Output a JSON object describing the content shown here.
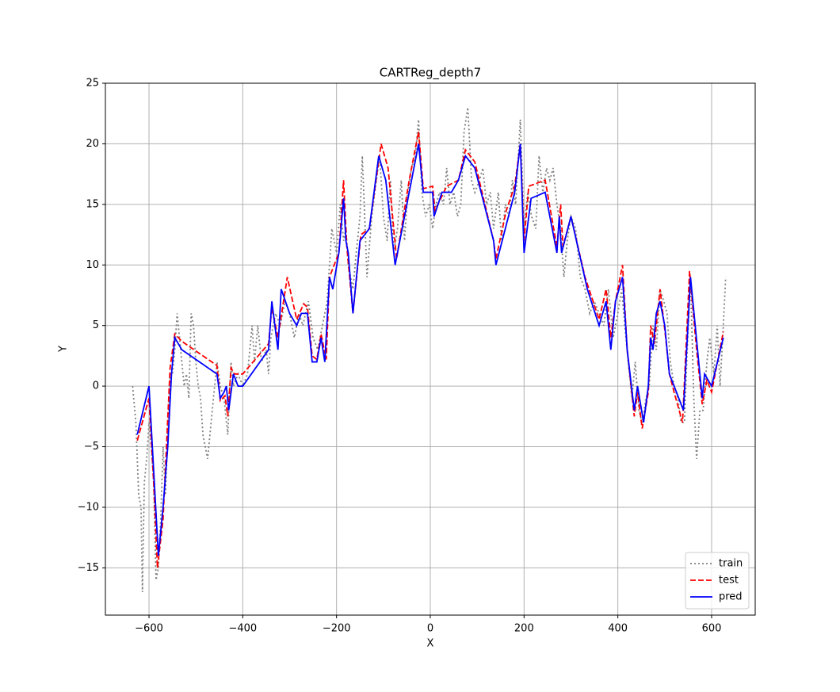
{
  "chart_data": {
    "type": "line",
    "title": "CARTReg_depth7",
    "x_label": "X",
    "y_label": "Y",
    "xlim": [
      -693,
      693
    ],
    "ylim": [
      -18.9,
      25
    ],
    "xticks": [
      {
        "value": -600,
        "label": "−600"
      },
      {
        "value": -400,
        "label": "−400"
      },
      {
        "value": -200,
        "label": "−200"
      },
      0,
      200,
      400,
      600
    ],
    "yticks": [
      {
        "value": -15,
        "label": "−15"
      },
      {
        "value": -10,
        "label": "−10"
      },
      {
        "value": -5,
        "label": "−5"
      },
      0,
      5,
      10,
      15,
      20,
      25
    ],
    "grid": true,
    "legend": "lower right",
    "series": [
      {
        "name": "train",
        "color": "#808080",
        "style": "dotted",
        "x": [
          -635,
          -628,
          -622,
          -617,
          -614,
          -610,
          -605,
          -600,
          -595,
          -590,
          -585,
          -580,
          -575,
          -570,
          -565,
          -560,
          -555,
          -550,
          -545,
          -540,
          -535,
          -530,
          -525,
          -520,
          -515,
          -510,
          -505,
          -500,
          -495,
          -490,
          -485,
          -480,
          -475,
          -470,
          -465,
          -455,
          -448,
          -440,
          -432,
          -425,
          -420,
          -410,
          -400,
          -390,
          -380,
          -375,
          -368,
          -360,
          -350,
          -345,
          -340,
          -330,
          -320,
          -310,
          -300,
          -290,
          -280,
          -272,
          -260,
          -250,
          -240,
          -230,
          -220,
          -210,
          -200,
          -192,
          -185,
          -180,
          -175,
          -165,
          -158,
          -150,
          -145,
          -140,
          -135,
          -125,
          -115,
          -108,
          -100,
          -92,
          -85,
          -78,
          -70,
          -62,
          -55,
          -48,
          -40,
          -32,
          -25,
          -18,
          -10,
          -2,
          5,
          12,
          20,
          28,
          35,
          42,
          50,
          58,
          65,
          72,
          80,
          88,
          95,
          105,
          112,
          120,
          128,
          135,
          145,
          152,
          160,
          168,
          175,
          182,
          192,
          200,
          208,
          216,
          225,
          232,
          240,
          248,
          255,
          262,
          270,
          278,
          285,
          292,
          300,
          310,
          320,
          330,
          340,
          350,
          360,
          370,
          380,
          390,
          400,
          408,
          415,
          422,
          430,
          437,
          445,
          452,
          460,
          467,
          475,
          482,
          490,
          498,
          505,
          512,
          520,
          528,
          535,
          542,
          548,
          555,
          562,
          568,
          575,
          582,
          590,
          596,
          605,
          612,
          618,
          625,
          630
        ],
        "values": [
          0,
          -3,
          -9,
          -10,
          -17,
          -8,
          -6,
          -3,
          -5,
          -8,
          -16,
          -15,
          -11,
          -5,
          -9,
          -4,
          1,
          1,
          3,
          6,
          4,
          2,
          0,
          1,
          -1,
          6,
          5,
          2,
          0,
          -1,
          -4,
          -5,
          -6,
          -4,
          -2,
          2,
          0,
          -1,
          -4,
          2,
          0,
          1,
          0,
          1,
          5,
          2,
          5,
          2,
          3,
          1,
          4,
          6,
          5,
          7,
          6,
          4,
          6,
          5,
          7,
          4,
          3,
          5,
          7,
          13,
          11,
          15,
          12,
          13,
          10,
          8,
          11,
          14,
          19,
          14,
          9,
          14,
          17,
          19,
          14,
          12,
          17,
          11,
          13,
          17,
          12,
          16,
          18,
          19,
          22,
          16,
          14,
          15,
          13,
          15,
          16,
          15,
          18,
          15,
          16,
          14,
          15,
          21,
          23,
          17,
          16,
          17,
          18,
          15,
          16,
          13,
          16,
          12,
          15,
          14,
          17,
          15,
          22,
          13,
          16,
          14,
          13,
          19,
          16,
          18,
          17,
          18,
          15,
          13,
          9,
          12,
          14,
          13,
          9,
          8,
          6,
          7,
          6,
          5,
          8,
          4,
          6,
          8,
          5,
          2,
          -1,
          2,
          -2,
          -3,
          -1,
          0,
          5,
          3,
          8,
          7,
          6,
          2,
          0,
          -1,
          -3,
          -3,
          3,
          9,
          -1,
          -6,
          -2,
          -2,
          2,
          4,
          1,
          5,
          0,
          5,
          9
        ]
      },
      {
        "name": "test",
        "color": "#ff0000",
        "style": "dashed",
        "x": [
          -625,
          -600,
          -590,
          -582,
          -570,
          -555,
          -545,
          -530,
          -455,
          -448,
          -438,
          -432,
          -425,
          -418,
          -400,
          -345,
          -338,
          -325,
          -305,
          -285,
          -270,
          -262,
          -252,
          -242,
          -233,
          -222,
          -215,
          -195,
          -185,
          -178,
          -165,
          -148,
          -130,
          -105,
          -90,
          -72,
          -45,
          -25,
          -15,
          5,
          10,
          35,
          60,
          75,
          95,
          135,
          140,
          162,
          180,
          192,
          200,
          210,
          245,
          270,
          278,
          283,
          300,
          330,
          360,
          375,
          385,
          395,
          410,
          420,
          435,
          442,
          452,
          465,
          470,
          478,
          490,
          502,
          510,
          520,
          538,
          553,
          568,
          580,
          590,
          600,
          625
        ],
        "values": [
          -4.5,
          -1,
          -8,
          -15,
          -11,
          1.5,
          4.3,
          3.7,
          1.7,
          -1.2,
          -0.8,
          -2.5,
          1.5,
          1,
          1,
          3.5,
          6.5,
          4,
          9,
          5.5,
          6.8,
          6.5,
          2.5,
          2.2,
          4.3,
          2.2,
          9,
          11,
          17,
          11.5,
          6,
          12.5,
          13,
          20,
          18,
          10.5,
          17,
          21,
          16.3,
          16.5,
          14.5,
          16.5,
          17,
          19.5,
          18.5,
          12,
          10.5,
          14.5,
          16.5,
          20,
          12,
          16.5,
          17,
          11.5,
          15,
          11.5,
          14,
          9,
          5.5,
          8,
          4,
          7,
          10,
          3,
          -2.5,
          -0.5,
          -3.5,
          -0.5,
          5,
          3.5,
          8,
          4,
          1,
          -0.5,
          -3,
          9.5,
          3,
          -1.5,
          0.5,
          -0.5,
          4.5
        ]
      },
      {
        "name": "pred",
        "color": "#0000ff",
        "style": "solid",
        "x": [
          -625,
          -600,
          -590,
          -580,
          -570,
          -560,
          -552,
          -545,
          -530,
          -455,
          -448,
          -440,
          -435,
          -430,
          -420,
          -410,
          -400,
          -345,
          -338,
          -325,
          -318,
          -300,
          -285,
          -275,
          -262,
          -252,
          -242,
          -233,
          -225,
          -215,
          -208,
          -195,
          -185,
          -180,
          -175,
          -165,
          -150,
          -130,
          -110,
          -95,
          -75,
          -50,
          -25,
          -15,
          5,
          8,
          25,
          45,
          60,
          75,
          95,
          135,
          140,
          160,
          180,
          192,
          200,
          215,
          245,
          270,
          275,
          280,
          300,
          335,
          360,
          375,
          385,
          395,
          410,
          420,
          435,
          442,
          455,
          465,
          470,
          475,
          482,
          490,
          500,
          510,
          520,
          540,
          555,
          570,
          580,
          585,
          600,
          625
        ],
        "values": [
          -4,
          0,
          -7,
          -14,
          -10,
          -5,
          1,
          4,
          3,
          1,
          -1,
          -0.5,
          0,
          -2,
          1,
          0,
          0,
          3,
          7,
          3,
          8,
          6,
          5,
          6,
          6,
          2,
          2,
          4,
          2,
          9,
          8,
          11,
          15.5,
          12,
          11,
          6,
          12,
          13,
          19,
          17,
          10,
          15,
          20,
          16,
          16,
          14,
          16,
          16,
          17,
          19,
          18,
          12,
          10,
          13,
          16,
          20,
          11,
          15.5,
          16,
          11,
          14,
          11,
          14,
          8,
          5,
          7,
          3,
          7,
          9,
          3,
          -2,
          0,
          -3,
          0,
          4,
          3,
          6,
          7,
          5,
          1,
          0,
          -2,
          9,
          3,
          -1,
          1,
          0,
          4
        ]
      }
    ]
  }
}
